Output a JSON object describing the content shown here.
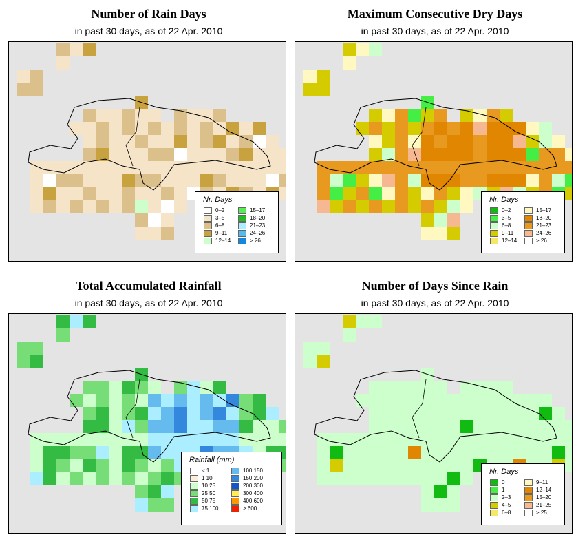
{
  "panels": [
    {
      "title": "Number of Rain Days",
      "subtitle": "in past 30 days, as of  22 Apr. 2010",
      "legend": {
        "title": "Nr. Days",
        "items": [
          {
            "label": "0–2",
            "color": "#ffffff"
          },
          {
            "label": "3–5",
            "color": "#f5e4c8"
          },
          {
            "label": "6–8",
            "color": "#dcc08c"
          },
          {
            "label": "9–11",
            "color": "#c9a240"
          },
          {
            "label": "12–14",
            "color": "#ccffcc"
          },
          {
            "label": "15–17",
            "color": "#55ee55"
          },
          {
            "label": "18–20",
            "color": "#22bb22"
          },
          {
            "label": "21–23",
            "color": "#aaeeff"
          },
          {
            "label": "24–26",
            "color": "#55bbee"
          },
          {
            "label": "> 26",
            "color": "#1188dd"
          }
        ]
      }
    },
    {
      "title": "Maximum Consecutive Dry Days",
      "subtitle": "in past 30 days, as of  22 Apr. 2010",
      "legend": {
        "title": "Nr. Days",
        "items": [
          {
            "label": "0–2",
            "color": "#11bb11"
          },
          {
            "label": "3–5",
            "color": "#44ee44"
          },
          {
            "label": "6–8",
            "color": "#ccffcc"
          },
          {
            "label": "9–11",
            "color": "#d4cc00"
          },
          {
            "label": "12–14",
            "color": "#f5e866"
          },
          {
            "label": "15–17",
            "color": "#fff8c0"
          },
          {
            "label": "18–20",
            "color": "#e08600"
          },
          {
            "label": "21–23",
            "color": "#e89a20"
          },
          {
            "label": "24–26",
            "color": "#f5b890"
          },
          {
            "label": "> 26",
            "color": "#ffffff"
          }
        ]
      }
    },
    {
      "title": "Total Accumulated Rainfall",
      "subtitle": "in past 30 days, as of  22 Apr. 2010",
      "legend": {
        "title": "Rainfall (mm)",
        "items": [
          {
            "label": "< 1",
            "color": "#ffffff"
          },
          {
            "label": "1    10",
            "color": "#fbeeda"
          },
          {
            "label": "10    25",
            "color": "#ccffcc"
          },
          {
            "label": "25    50",
            "color": "#77dd77"
          },
          {
            "label": "50    75",
            "color": "#33bb44"
          },
          {
            "label": "75   100",
            "color": "#aaeeff"
          },
          {
            "label": "100   150",
            "color": "#66bbee"
          },
          {
            "label": "150   200",
            "color": "#3388dd"
          },
          {
            "label": "200   300",
            "color": "#1155cc"
          },
          {
            "label": "300   400",
            "color": "#ffee55"
          },
          {
            "label": "400   600",
            "color": "#ff9900"
          },
          {
            "label": "> 600",
            "color": "#ee2200"
          }
        ]
      }
    },
    {
      "title": "Number of Days Since Rain",
      "subtitle": "in past 30 days, as of  22 Apr. 2010",
      "legend": {
        "title": "Nr. Days",
        "items": [
          {
            "label": "0",
            "color": "#11bb11"
          },
          {
            "label": "1",
            "color": "#44ee44"
          },
          {
            "label": "2–3",
            "color": "#ccffcc"
          },
          {
            "label": "4–5",
            "color": "#d4cc00"
          },
          {
            "label": "6–8",
            "color": "#f5e866"
          },
          {
            "label": "9–11",
            "color": "#fff8c0"
          },
          {
            "label": "12–14",
            "color": "#e08600"
          },
          {
            "label": "15–20",
            "color": "#e89a20"
          },
          {
            "label": "21–25",
            "color": "#f5b890"
          },
          {
            "label": "> 25",
            "color": "#ffffff"
          }
        ]
      }
    }
  ]
}
